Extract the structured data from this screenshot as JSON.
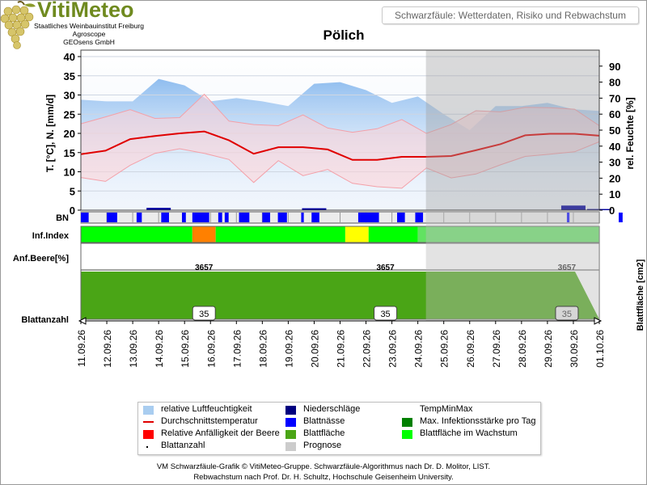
{
  "brand": {
    "name": "VitiMeteo",
    "org_lines": [
      "Staatliches Weinbauinstitut Freiburg",
      "Agroscope",
      "GEOsens GmbH"
    ]
  },
  "header": {
    "title": "Schwarzfäule: Wetterdaten, Risiko und Rebwachstum"
  },
  "station": "Pölich",
  "rows": {
    "bn": "BN",
    "inf": "Inf.Index",
    "anf": "Anf.Beere[%]",
    "blatt": "Blattanzahl"
  },
  "footer": {
    "line1": "VM Schwarzfäule-Grafik © VitiMeteo-Gruppe. Schwarzfäule-Algorithmus nach Dr. D. Molitor, LIST.",
    "line2": "Rebwachstum nach Prof. Dr. H. Schultz, Hochschule Geisenheim University."
  },
  "legend": [
    {
      "label": "relative Luftfeuchtigkeit",
      "color": "#a9cdf0",
      "kind": "fill"
    },
    {
      "label": "Niederschläge",
      "color": "#000080",
      "kind": "fill"
    },
    {
      "label": "TempMinMax",
      "color": "#ffd7d7",
      "kind": "fill"
    },
    {
      "label": "Durchschnittstemperatur",
      "color": "#e00000",
      "kind": "line"
    },
    {
      "label": "Blattnässe",
      "color": "#0000ff",
      "kind": "fill"
    },
    {
      "label": "Max. Infektionsstärke pro Tag",
      "color": "#008000",
      "kind": "fill"
    },
    {
      "label": "Relative Anfälligkeit der Beere",
      "color": "#ff0000",
      "kind": "fill"
    },
    {
      "label": "Blattfläche",
      "color": "#4aa516",
      "kind": "fill"
    },
    {
      "label": "Blattfläche im Wachstum",
      "color": "#00ff00",
      "kind": "fill"
    },
    {
      "label": "Blattanzahl",
      "color": "#000000",
      "kind": "dot"
    },
    {
      "label": "Prognose",
      "color": "#cccccc",
      "kind": "fill"
    }
  ],
  "chart_data": {
    "type": "line",
    "dates": [
      "11.09.26",
      "12.09.26",
      "13.09.26",
      "14.09.26",
      "15.09.26",
      "16.09.26",
      "17.09.26",
      "18.09.26",
      "19.09.26",
      "20.09.26",
      "21.09.26",
      "22.09.26",
      "23.09.26",
      "24.09.26",
      "25.09.26",
      "26.09.26",
      "27.09.26",
      "28.09.26",
      "29.09.26",
      "30.09.26",
      "01.10.26"
    ],
    "forecast_from": "24.09.26",
    "ylabel_left": "T. [°C], N. [mm/d]",
    "ylabel_right": "rel. Feuchte [%]",
    "ylabel_blatt": "Blattfläche [cm2]",
    "left_axis": {
      "min": 0,
      "max": 40,
      "ticks": [
        0,
        5,
        10,
        15,
        20,
        25,
        30,
        35,
        40
      ]
    },
    "right_axis": {
      "min": 0,
      "max": 100,
      "ticks": [
        0,
        10,
        20,
        30,
        40,
        50,
        60,
        70,
        80,
        90
      ]
    },
    "series": {
      "rel_humidity_pct": [
        69,
        68,
        68,
        82,
        78,
        68,
        70,
        68,
        65,
        79,
        80,
        75,
        67,
        71,
        60,
        50,
        65,
        65,
        67,
        63,
        62
      ],
      "temp_avg": [
        14.6,
        15.5,
        18.5,
        19.3,
        20.0,
        20.5,
        18.2,
        14.7,
        16.4,
        16.4,
        15.8,
        13.1,
        13.1,
        13.9,
        13.9,
        14.1,
        15.6,
        17.2,
        19.5,
        19.9,
        19.9,
        19.4
      ],
      "temp_max": [
        22.5,
        24.3,
        26.2,
        23.9,
        24.1,
        30.2,
        23.2,
        22.3,
        22.0,
        24.8,
        21.4,
        20.3,
        21.2,
        23.6,
        20.0,
        22.3,
        25.9,
        25.6,
        26.8,
        26.7,
        26.3,
        22.0
      ],
      "temp_min": [
        8.5,
        7.5,
        11.7,
        14.8,
        16.0,
        14.8,
        13.2,
        7.2,
        12.9,
        9.0,
        10.6,
        7.0,
        6.1,
        5.7,
        11.0,
        8.4,
        9.4,
        11.8,
        14.0,
        14.6,
        15.2,
        17.8
      ],
      "precip_mm": [
        0,
        0,
        0,
        0.6,
        0,
        0,
        0,
        0,
        0,
        0.5,
        0,
        0,
        0,
        0,
        0,
        0,
        0,
        0,
        0,
        1.2,
        0.3
      ]
    },
    "blattnaesse_intervals": [
      [
        0.0,
        0.3
      ],
      [
        1.0,
        1.4
      ],
      [
        2.15,
        2.35
      ],
      [
        3.1,
        3.4
      ],
      [
        3.9,
        4.05
      ],
      [
        4.3,
        4.95
      ],
      [
        5.3,
        5.45
      ],
      [
        5.55,
        5.7
      ],
      [
        6.1,
        6.5
      ],
      [
        7.0,
        7.3
      ],
      [
        7.6,
        7.95
      ],
      [
        8.5,
        8.6
      ],
      [
        8.9,
        9.2
      ],
      [
        10.7,
        11.5
      ],
      [
        12.2,
        12.5
      ],
      [
        12.9,
        13.2
      ],
      [
        18.75,
        18.85
      ],
      [
        20.75,
        20.9
      ]
    ],
    "inf_index_segments": [
      {
        "from": 0,
        "to": 4.3,
        "color": "#00ff00"
      },
      {
        "from": 4.3,
        "to": 5.2,
        "color": "#ff8000"
      },
      {
        "from": 5.2,
        "to": 10.2,
        "color": "#00ff00"
      },
      {
        "from": 10.2,
        "to": 11.1,
        "color": "#ffff00"
      },
      {
        "from": 11.1,
        "to": 13.0,
        "color": "#00ff00"
      },
      {
        "from": 13.0,
        "to": 20.0,
        "color": "#62e262"
      }
    ],
    "blattflaeche_labels": [
      {
        "at": 4.5,
        "value": "3657"
      },
      {
        "at": 11.5,
        "value": "3657"
      },
      {
        "at": 18.5,
        "value": "3657"
      }
    ],
    "blattanzahl_labels": [
      {
        "at": 4.5,
        "value": "35"
      },
      {
        "at": 11.5,
        "value": "35"
      },
      {
        "at": 18.5,
        "value": "35"
      }
    ]
  }
}
